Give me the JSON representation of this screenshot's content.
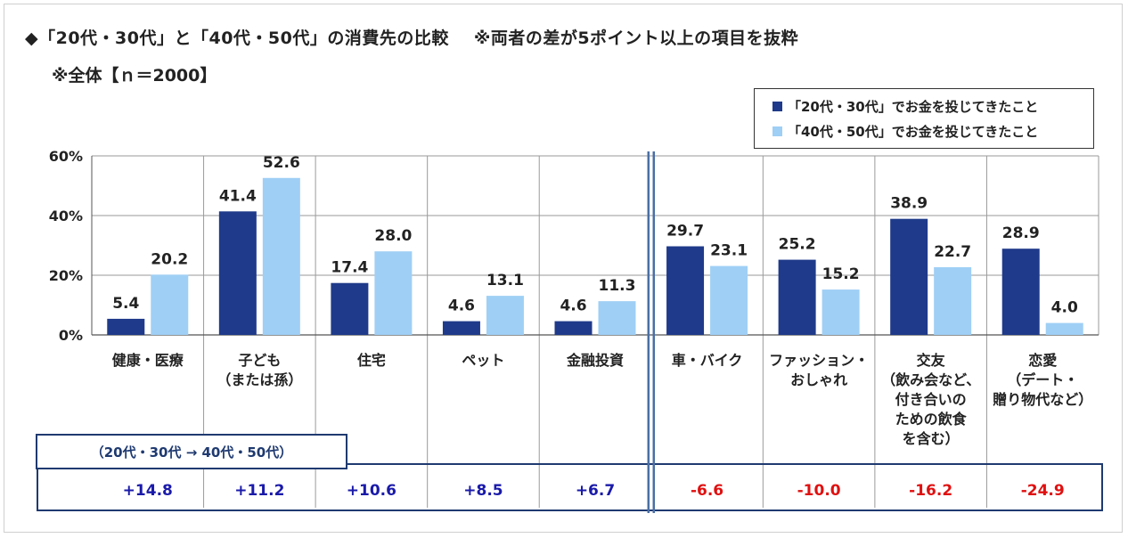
{
  "title": "◆「20代・30代」と「40代・50代」の消費先の比較",
  "title_note": "※両者の差が5ポイント以上の項目を抜粋",
  "subtitle": "※全体【ｎ＝2000】",
  "legend": [
    {
      "label": "「20代・30代」でお金を投じてきたこと",
      "color": "#1f3a8a"
    },
    {
      "label": "「40代・50代」でお金を投じてきたこと",
      "color": "#9fcff5"
    }
  ],
  "diff_label": "（20代・30代 → 40代・50代）",
  "colors": {
    "positive": "#1a1aaa",
    "negative": "#e01010",
    "frame": "#1f3a70",
    "divider": "#4a6fa5"
  },
  "chart_data": {
    "type": "bar",
    "ylim": [
      0,
      60
    ],
    "yticks": [
      "0%",
      "20%",
      "40%",
      "60%"
    ],
    "ytick_values": [
      0,
      20,
      40,
      60
    ],
    "grid": true,
    "legend_position": "top-right",
    "categories": [
      [
        "健康・医療"
      ],
      [
        "子ども",
        "（または孫）"
      ],
      [
        "住宅"
      ],
      [
        "ペット"
      ],
      [
        "金融投資"
      ],
      [
        "車・バイク"
      ],
      [
        "ファッション・",
        "おしゃれ"
      ],
      [
        "交友",
        "（飲み会など、",
        "付き合いの",
        "ための飲食",
        "を含む）"
      ],
      [
        "恋愛",
        "（デート・",
        "贈り物代など）"
      ]
    ],
    "series": [
      {
        "name": "「20代・30代」でお金を投じてきたこと",
        "values": [
          5.4,
          41.4,
          17.4,
          4.6,
          4.6,
          29.7,
          25.2,
          38.9,
          28.9
        ],
        "labels": [
          "5.4",
          "41.4",
          "17.4",
          "4.6",
          "4.6",
          "29.7",
          "25.2",
          "38.9",
          "28.9"
        ]
      },
      {
        "name": "「40代・50代」でお金を投じてきたこと",
        "values": [
          20.2,
          52.6,
          28.0,
          13.1,
          11.3,
          23.1,
          15.2,
          22.7,
          4.0
        ],
        "labels": [
          "20.2",
          "52.6",
          "28.0",
          "13.1",
          "11.3",
          "23.1",
          "15.2",
          "22.7",
          "4.0"
        ]
      }
    ],
    "differences": [
      "+14.8",
      "+11.2",
      "+10.6",
      "+8.5",
      "+6.7",
      "-6.6",
      "-10.0",
      "-16.2",
      "-24.9"
    ],
    "difference_values": [
      14.8,
      11.2,
      10.6,
      8.5,
      6.7,
      -6.6,
      -10.0,
      -16.2,
      -24.9
    ]
  }
}
